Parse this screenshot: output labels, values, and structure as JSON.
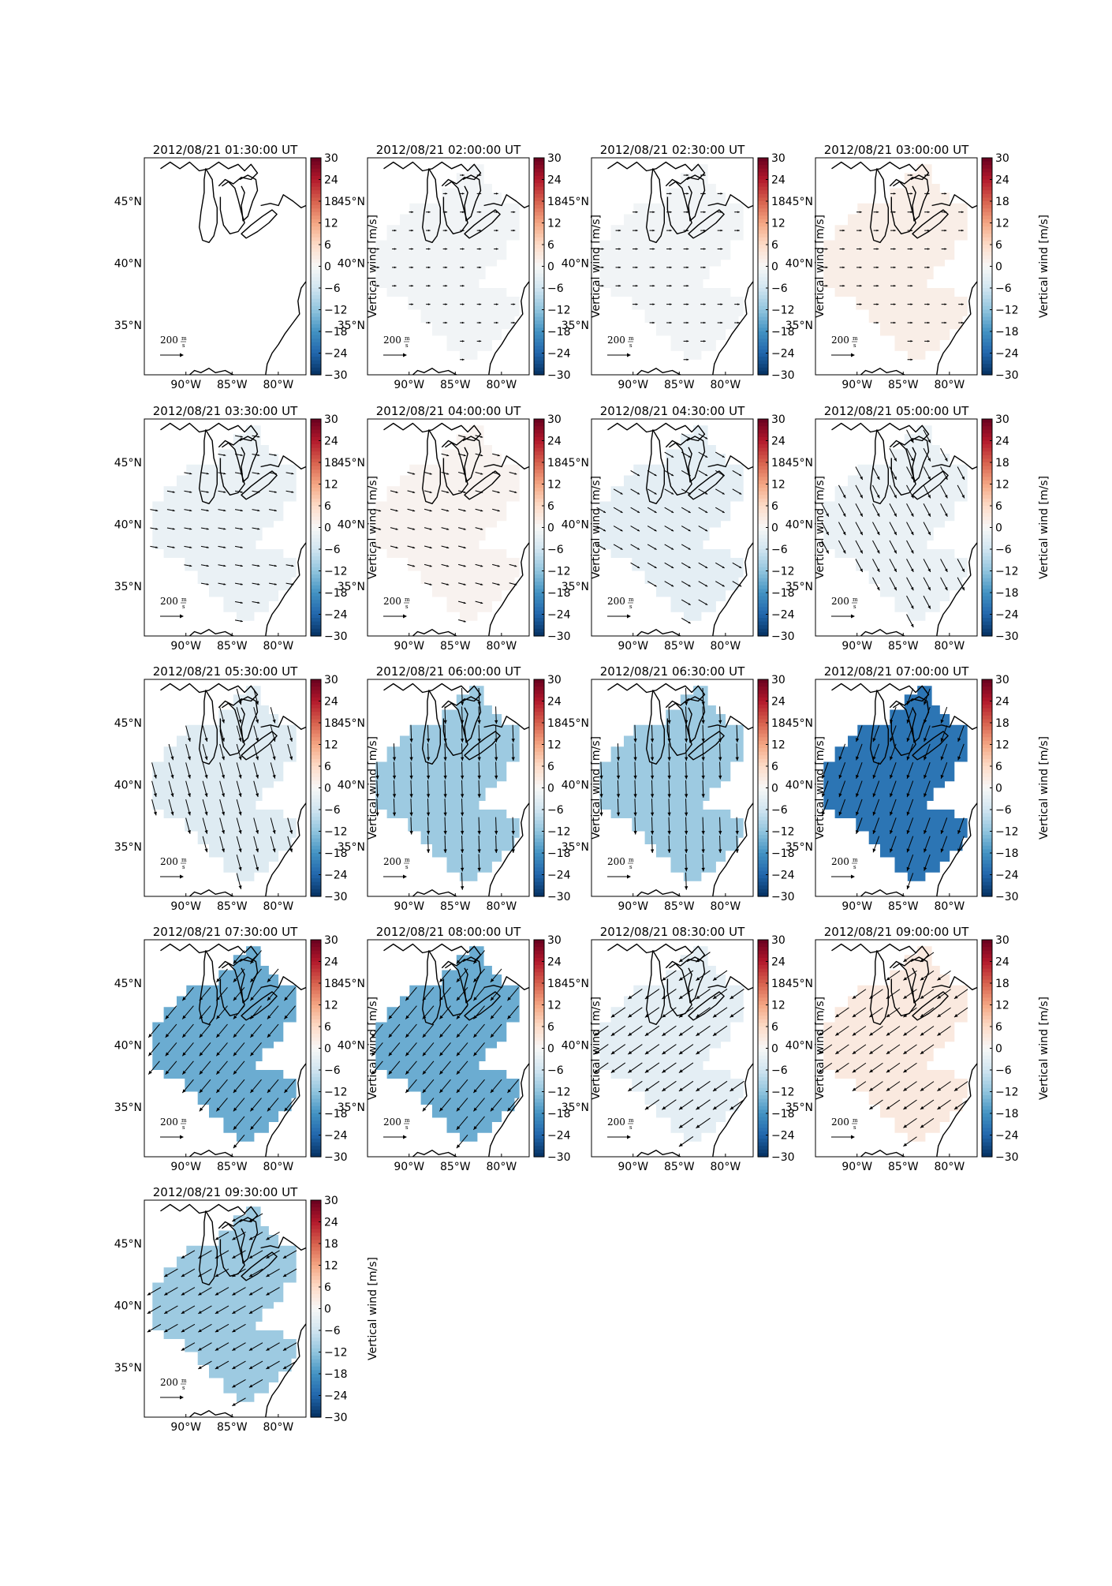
{
  "chart_data": {
    "type": "heatmap",
    "figure_kind": "small-multiples map with wind-vector arrows",
    "region_extent": {
      "lon": [
        -94.5,
        -77
      ],
      "lat": [
        31,
        48.5
      ]
    },
    "lat_ticks": [
      {
        "value": 35,
        "label": "35°N"
      },
      {
        "value": 40,
        "label": "40°N"
      },
      {
        "value": 45,
        "label": "45°N"
      }
    ],
    "lon_ticks": [
      {
        "value": -90,
        "label": "90°W"
      },
      {
        "value": -85,
        "label": "85°W"
      },
      {
        "value": -80,
        "label": "80°W"
      }
    ],
    "colorbar": {
      "label": "Vertical wind [m/s]",
      "range": [
        -30,
        30
      ],
      "ticks": [
        30,
        24,
        18,
        12,
        6,
        0,
        -6,
        -12,
        -18,
        -24,
        -30
      ],
      "tick_labels": [
        "30",
        "24",
        "18",
        "12",
        "6",
        "0",
        "−6",
        "−12",
        "−18",
        "−24",
        "−30"
      ],
      "colormap": "RdBu_r",
      "colors": [
        "#053061",
        "#2166ac",
        "#4393c3",
        "#92c5de",
        "#d1e5f0",
        "#f7f7f7",
        "#fddbc7",
        "#f4a582",
        "#d6604d",
        "#b2182b",
        "#67001f"
      ]
    },
    "reference_arrow": {
      "value": "200",
      "unit_numerator": "m",
      "unit_denominator": "s"
    },
    "panels": [
      {
        "title": "2012/08/21 01:30:00 UT",
        "vertical_wind": null,
        "arrow_dir_deg": 0,
        "arrow_scale": 0
      },
      {
        "title": "2012/08/21 02:00:00 UT",
        "vertical_wind": -1,
        "arrow_dir_deg": 0,
        "arrow_scale": 0.25
      },
      {
        "title": "2012/08/21 02:30:00 UT",
        "vertical_wind": -1,
        "arrow_dir_deg": 0,
        "arrow_scale": 0.3
      },
      {
        "title": "2012/08/21 03:00:00 UT",
        "vertical_wind": 2,
        "arrow_dir_deg": 0,
        "arrow_scale": 0.3
      },
      {
        "title": "2012/08/21 03:30:00 UT",
        "vertical_wind": -2,
        "arrow_dir_deg": -10,
        "arrow_scale": 0.45
      },
      {
        "title": "2012/08/21 04:00:00 UT",
        "vertical_wind": 1,
        "arrow_dir_deg": -15,
        "arrow_scale": 0.45
      },
      {
        "title": "2012/08/21 04:30:00 UT",
        "vertical_wind": -3,
        "arrow_dir_deg": -30,
        "arrow_scale": 0.6
      },
      {
        "title": "2012/08/21 05:00:00 UT",
        "vertical_wind": -2,
        "arrow_dir_deg": -62,
        "arrow_scale": 0.85
      },
      {
        "title": "2012/08/21 05:30:00 UT",
        "vertical_wind": -4,
        "arrow_dir_deg": -75,
        "arrow_scale": 0.95
      },
      {
        "title": "2012/08/21 06:00:00 UT",
        "vertical_wind": -11,
        "arrow_dir_deg": -88,
        "arrow_scale": 1.0
      },
      {
        "title": "2012/08/21 06:30:00 UT",
        "vertical_wind": -11,
        "arrow_dir_deg": -88,
        "arrow_scale": 1.0
      },
      {
        "title": "2012/08/21 07:00:00 UT",
        "vertical_wind": -22,
        "arrow_dir_deg": -110,
        "arrow_scale": 1.0
      },
      {
        "title": "2012/08/21 07:30:00 UT",
        "vertical_wind": -15,
        "arrow_dir_deg": -130,
        "arrow_scale": 1.0
      },
      {
        "title": "2012/08/21 08:00:00 UT",
        "vertical_wind": -15,
        "arrow_dir_deg": -130,
        "arrow_scale": 1.0
      },
      {
        "title": "2012/08/21 08:30:00 UT",
        "vertical_wind": -3,
        "arrow_dir_deg": -145,
        "arrow_scale": 1.0
      },
      {
        "title": "2012/08/21 09:00:00 UT",
        "vertical_wind": 3,
        "arrow_dir_deg": -145,
        "arrow_scale": 0.95
      },
      {
        "title": "2012/08/21 09:30:00 UT",
        "vertical_wind": -11,
        "arrow_dir_deg": -150,
        "arrow_scale": 0.9
      }
    ]
  }
}
